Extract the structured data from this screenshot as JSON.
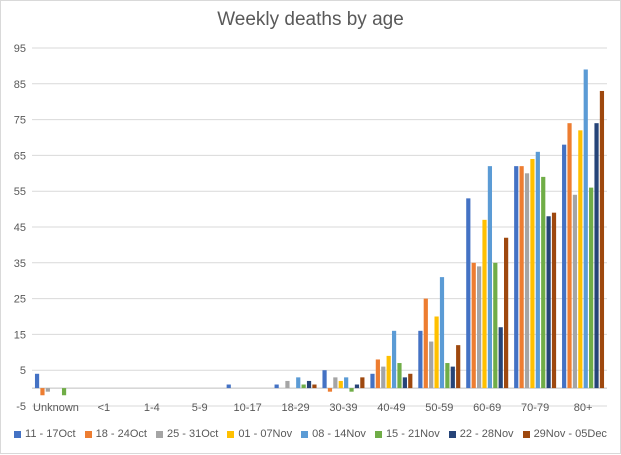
{
  "chart_data": {
    "type": "bar",
    "title": "Weekly deaths by age",
    "xlabel": "",
    "ylabel": "",
    "ylim": [
      -5,
      95
    ],
    "yticks": [
      -5,
      5,
      15,
      25,
      35,
      45,
      55,
      65,
      75,
      85,
      95
    ],
    "grid": true,
    "legend_position": "bottom",
    "categories": [
      "Unknown",
      "<1",
      "1-4",
      "5-9",
      "10-17",
      "18-29",
      "30-39",
      "40-49",
      "50-59",
      "60-69",
      "70-79",
      "80+"
    ],
    "series": [
      {
        "name": "11 - 17Oct",
        "color": "#4472c4",
        "values": [
          4,
          0,
          0,
          0,
          1,
          1,
          5,
          4,
          16,
          53,
          62,
          68
        ]
      },
      {
        "name": "18 - 24Oct",
        "color": "#ed7d31",
        "values": [
          -2,
          0,
          0,
          0,
          0,
          0,
          -1,
          8,
          25,
          35,
          62,
          74
        ]
      },
      {
        "name": "25 - 31Oct",
        "color": "#a5a5a5",
        "values": [
          -1,
          0,
          0,
          0,
          0,
          2,
          3,
          6,
          13,
          34,
          60,
          54
        ]
      },
      {
        "name": "01 - 07Nov",
        "color": "#ffc000",
        "values": [
          0,
          0,
          0,
          0,
          0,
          0,
          2,
          9,
          20,
          47,
          64,
          72
        ]
      },
      {
        "name": "08 - 14Nov",
        "color": "#5b9bd5",
        "values": [
          0,
          0,
          0,
          0,
          0,
          3,
          3,
          16,
          31,
          62,
          66,
          89
        ]
      },
      {
        "name": "15 - 21Nov",
        "color": "#70ad47",
        "values": [
          -2,
          0,
          0,
          0,
          0,
          1,
          -1,
          7,
          7,
          35,
          59,
          56
        ]
      },
      {
        "name": "22 - 28Nov",
        "color": "#264478",
        "values": [
          0,
          0,
          0,
          0,
          0,
          2,
          1,
          3,
          6,
          17,
          48,
          74
        ]
      },
      {
        "name": "29Nov - 05Dec",
        "color": "#9e480e",
        "values": [
          0,
          0,
          0,
          0,
          0,
          1,
          3,
          4,
          12,
          42,
          49,
          83
        ]
      }
    ]
  }
}
